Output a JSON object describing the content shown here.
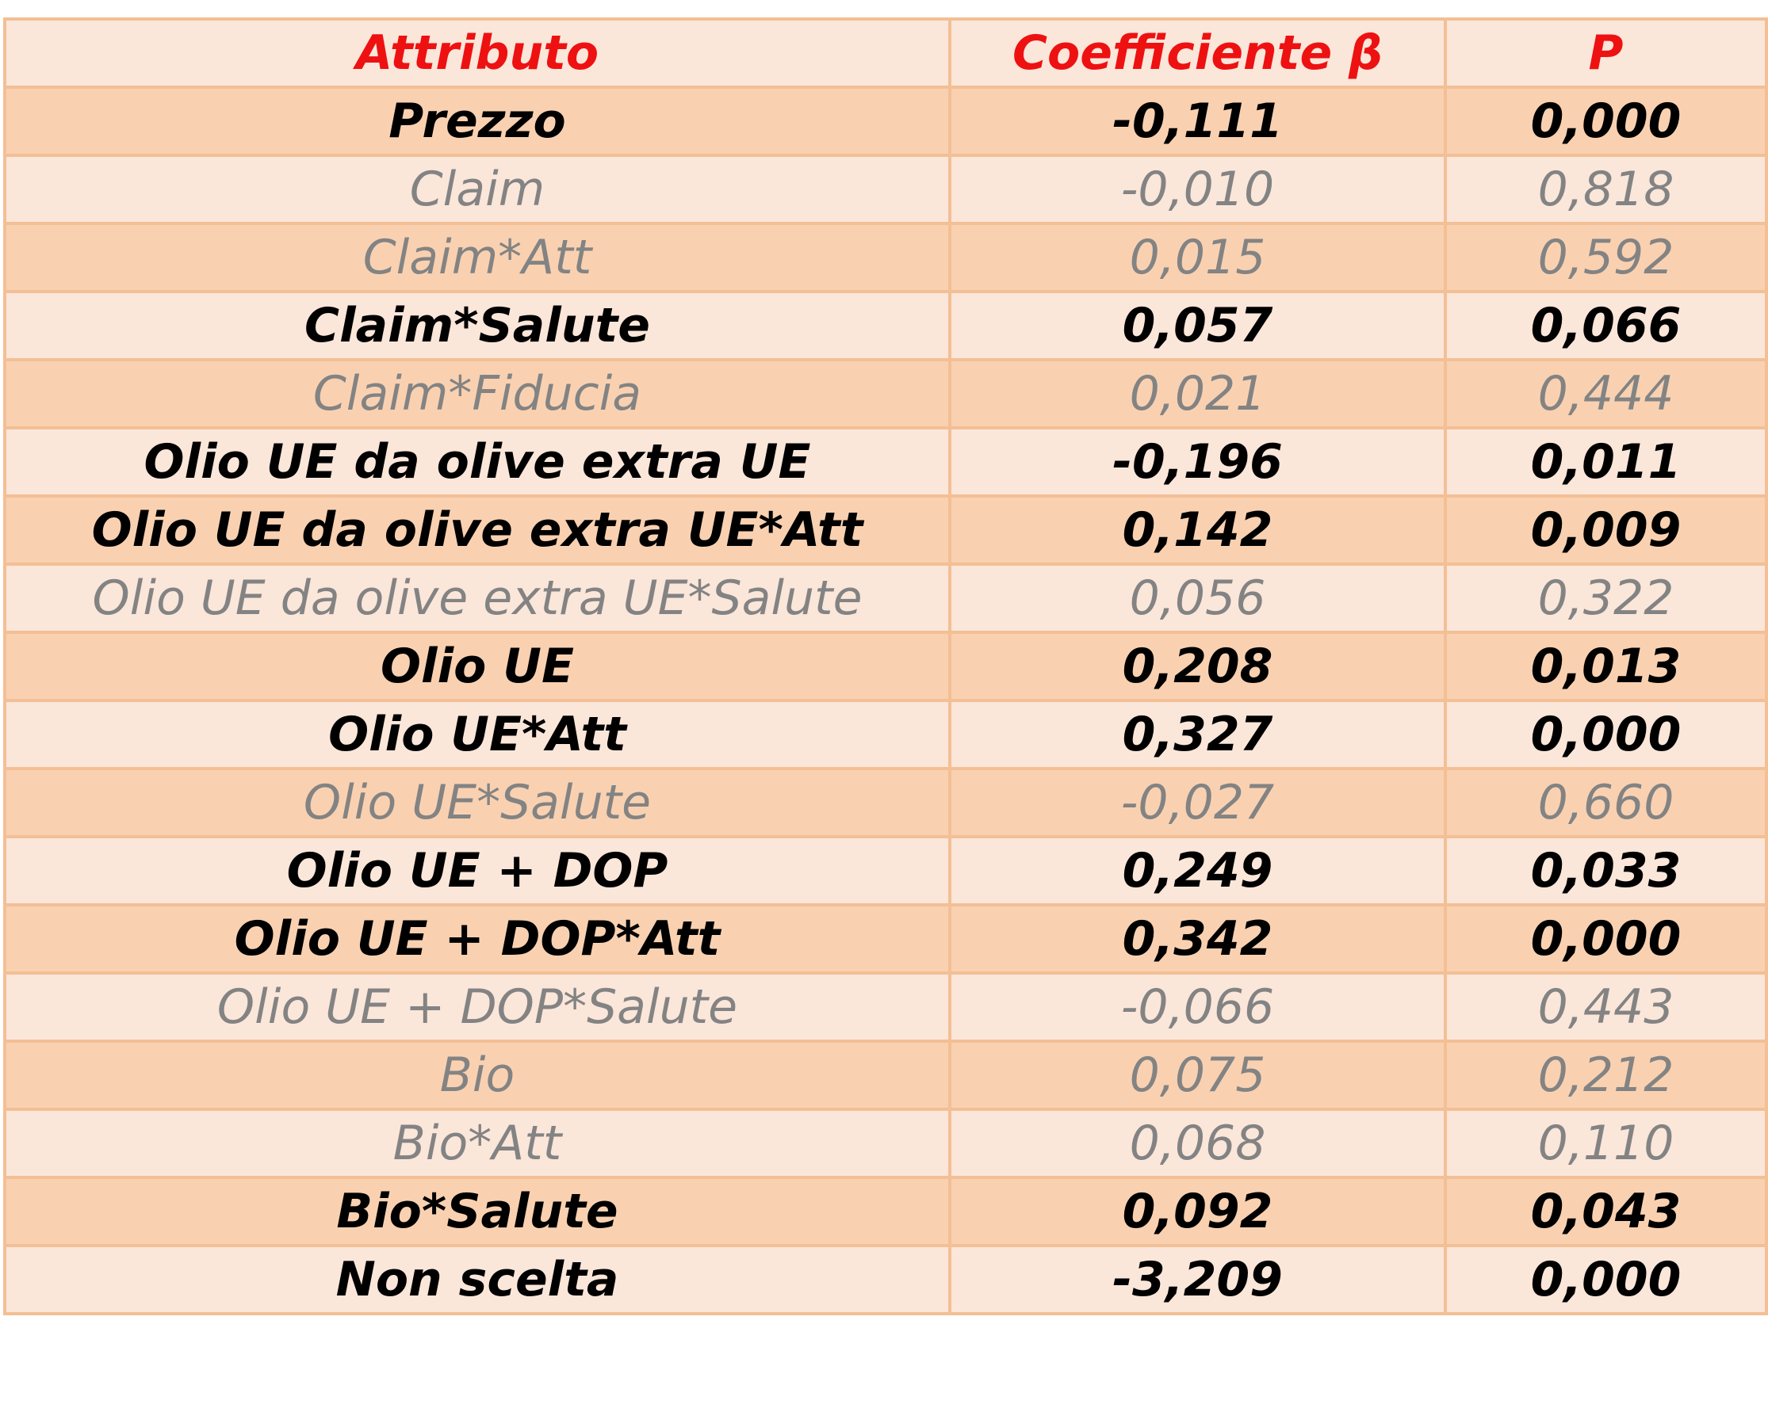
{
  "chart_data": {
    "type": "table",
    "columns": [
      "Attributo",
      "Coefficiente β",
      "P"
    ],
    "rows": [
      {
        "attribute": "Prezzo",
        "coefficient": "-0,111",
        "p": "0,000",
        "significant": true
      },
      {
        "attribute": "Claim",
        "coefficient": "-0,010",
        "p": "0,818",
        "significant": false
      },
      {
        "attribute": "Claim*Att",
        "coefficient": "0,015",
        "p": "0,592",
        "significant": false
      },
      {
        "attribute": "Claim*Salute",
        "coefficient": "0,057",
        "p": "0,066",
        "significant": true
      },
      {
        "attribute": "Claim*Fiducia",
        "coefficient": "0,021",
        "p": "0,444",
        "significant": false
      },
      {
        "attribute": "Olio UE da olive extra UE",
        "coefficient": "-0,196",
        "p": "0,011",
        "significant": true
      },
      {
        "attribute": "Olio UE da olive extra UE*Att",
        "coefficient": "0,142",
        "p": "0,009",
        "significant": true
      },
      {
        "attribute": "Olio UE da olive extra UE*Salute",
        "coefficient": "0,056",
        "p": "0,322",
        "significant": false
      },
      {
        "attribute": "Olio UE",
        "coefficient": "0,208",
        "p": "0,013",
        "significant": true
      },
      {
        "attribute": "Olio UE*Att",
        "coefficient": "0,327",
        "p": "0,000",
        "significant": true
      },
      {
        "attribute": "Olio UE*Salute",
        "coefficient": "-0,027",
        "p": "0,660",
        "significant": false
      },
      {
        "attribute": "Olio UE + DOP",
        "coefficient": "0,249",
        "p": "0,033",
        "significant": true
      },
      {
        "attribute": "Olio UE + DOP*Att",
        "coefficient": "0,342",
        "p": "0,000",
        "significant": true
      },
      {
        "attribute": "Olio UE + DOP*Salute",
        "coefficient": "-0,066",
        "p": "0,443",
        "significant": false
      },
      {
        "attribute": "Bio",
        "coefficient": "0,075",
        "p": "0,212",
        "significant": false
      },
      {
        "attribute": "Bio*Att",
        "coefficient": "0,068",
        "p": "0,110",
        "significant": false
      },
      {
        "attribute": "Bio*Salute",
        "coefficient": "0,092",
        "p": "0,043",
        "significant": true
      },
      {
        "attribute": "Non scelta",
        "coefficient": "-3,209",
        "p": "0,000",
        "significant": true
      }
    ]
  },
  "colors": {
    "header_text": "#ee1111",
    "significant_text": "#000000",
    "nonsignificant_text": "#838383",
    "row_shade": "#f9d1b1",
    "row_light": "#fbe6da",
    "grid_line": "#f3bf95"
  }
}
